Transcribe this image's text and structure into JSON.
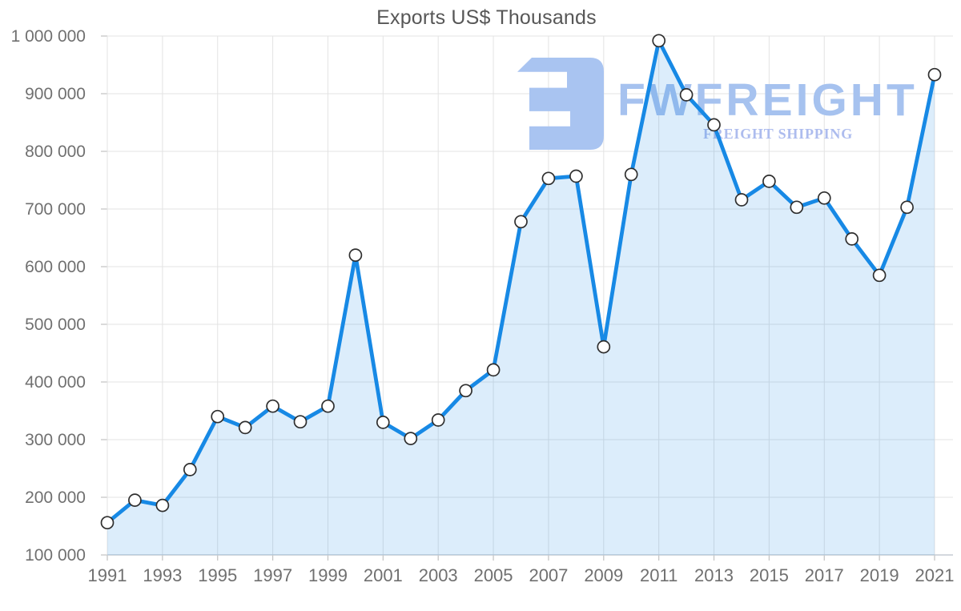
{
  "chart_data": {
    "type": "area",
    "title": "Exports US$ Thousands",
    "x": [
      1991,
      1992,
      1993,
      1994,
      1995,
      1996,
      1997,
      1998,
      1999,
      2000,
      2001,
      2002,
      2003,
      2004,
      2005,
      2006,
      2007,
      2008,
      2009,
      2010,
      2011,
      2012,
      2013,
      2014,
      2015,
      2016,
      2017,
      2018,
      2019,
      2020,
      2021
    ],
    "values": [
      156000,
      195000,
      186000,
      248000,
      340000,
      321000,
      358000,
      331000,
      358000,
      620000,
      330000,
      302000,
      334000,
      385000,
      421000,
      678000,
      753000,
      757000,
      461000,
      760000,
      992000,
      898000,
      846000,
      716000,
      748000,
      703000,
      719000,
      648000,
      585000,
      703000,
      933000
    ],
    "series_name": "Exports US$ Thousands",
    "xlabel": "",
    "ylabel": "",
    "ylim": [
      100000,
      1000000
    ],
    "y_tick_step": 100000,
    "y_tick_labels": [
      "100 000",
      "200 000",
      "300 000",
      "400 000",
      "500 000",
      "600 000",
      "700 000",
      "800 000",
      "900 000",
      "1 000 000"
    ],
    "x_tick_labels": [
      "1991",
      "1993",
      "1995",
      "1997",
      "1999",
      "2001",
      "2003",
      "2005",
      "2007",
      "2009",
      "2011",
      "2013",
      "2015",
      "2017",
      "2019",
      "2021"
    ],
    "grid": true,
    "legend": null
  },
  "watermark": {
    "brand": "FWFREIGHT",
    "tagline": "FREIGHT SHIPPING",
    "logo_icon": "fwfreight-logo"
  },
  "colors": {
    "line": "#1789e5",
    "area_fill": "rgba(23,137,229,0.15)",
    "marker_fill": "#ffffff",
    "marker_stroke": "#2f2f2f",
    "gridline": "#e3e3e3",
    "axis_line": "#c5ccd3",
    "tick": "#c2c2c2",
    "axis_text": "#707070",
    "title_text": "#575757",
    "watermark_logo": "#a9c4f1",
    "watermark_brand": "#a6c2ef",
    "watermark_tagline": "#adbcee"
  }
}
